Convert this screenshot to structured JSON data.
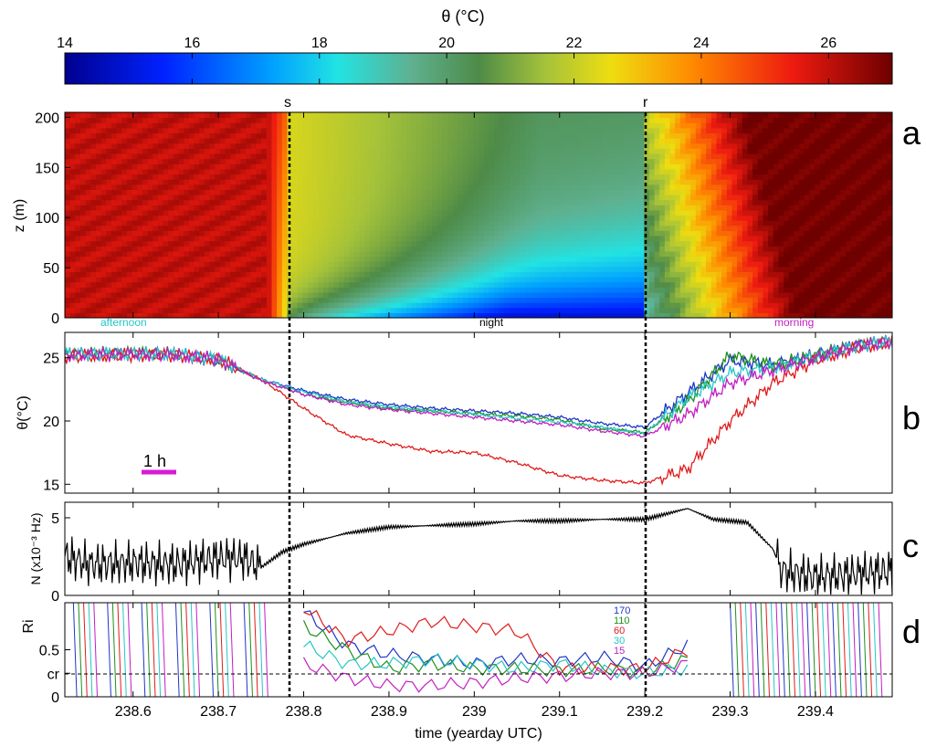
{
  "colorbar": {
    "title": "θ (°C)",
    "ticks": [
      "14",
      "16",
      "18",
      "20",
      "22",
      "24",
      "26"
    ],
    "min": 14,
    "max": 27
  },
  "panel_a": {
    "letter": "a",
    "ylabel": "z (m)",
    "yticks": [
      "0",
      "50",
      "100",
      "150",
      "200"
    ],
    "marker_s": "s",
    "marker_r": "r",
    "label_afternoon": "afternoon",
    "label_night": "night",
    "label_morning": "morning"
  },
  "panel_b": {
    "letter": "b",
    "ylabel": "θ(°C)",
    "yticks": [
      "15",
      "20",
      "25"
    ],
    "scalebar_label": "1 h"
  },
  "panel_c": {
    "letter": "c",
    "ylabel": "N (x10⁻³ Hz)",
    "yticks": [
      "0",
      "5"
    ]
  },
  "panel_d": {
    "letter": "d",
    "ylabel": "Ri",
    "yticks": [
      "0",
      "cr",
      "0.5"
    ],
    "legend": [
      "170",
      "110",
      "60",
      "30",
      "15"
    ]
  },
  "xaxis": {
    "label": "time (yearday UTC)",
    "ticks": [
      "238.6",
      "238.7",
      "238.8",
      "238.9",
      "239",
      "239.1",
      "239.2",
      "239.3",
      "239.4"
    ]
  },
  "colors": {
    "s170": "#1f35c8",
    "s110": "#1e8f1e",
    "s60": "#e01b1b",
    "s30": "#27c6c6",
    "s15": "#c21ec2",
    "scalebar": "#d81ad8"
  },
  "chart_data": [
    {
      "type": "heatmap",
      "title": "θ (°C)",
      "ylabel": "z (m)",
      "xlabel": "time (yearday UTC)",
      "xlim": [
        238.52,
        239.49
      ],
      "ylim": [
        0,
        205
      ],
      "colorbar_range": [
        14,
        27
      ],
      "events": {
        "s": 238.775,
        "r": 239.195
      },
      "notes": "temperature warm (~26) in afternoon and morning, cold (~15) near surface at night"
    },
    {
      "type": "line",
      "ylabel": "θ(°C)",
      "xlabel": "time (yearday UTC)",
      "ylim": [
        14.3,
        27
      ],
      "x": [
        238.52,
        238.6,
        238.65,
        238.7,
        238.75,
        238.8,
        238.85,
        238.9,
        238.95,
        239.0,
        239.05,
        239.1,
        239.15,
        239.2,
        239.25,
        239.3,
        239.35,
        239.4,
        239.45,
        239.49
      ],
      "series": [
        {
          "name": "170",
          "values": [
            25.3,
            25.3,
            25.3,
            24.8,
            23.3,
            22.4,
            21.7,
            21.3,
            21.0,
            20.8,
            20.6,
            20.3,
            19.8,
            19.5,
            22.2,
            24.8,
            24.4,
            25.2,
            26.0,
            26.3
          ]
        },
        {
          "name": "110",
          "values": [
            25.3,
            25.4,
            25.3,
            24.8,
            23.2,
            22.1,
            21.5,
            21.0,
            20.8,
            20.6,
            20.4,
            20.1,
            19.4,
            19.1,
            21.5,
            25.2,
            24.4,
            25.2,
            26.0,
            26.3
          ]
        },
        {
          "name": "60",
          "values": [
            25.1,
            25.2,
            25.2,
            24.9,
            23.3,
            21.0,
            18.9,
            18.2,
            17.6,
            17.5,
            16.7,
            15.7,
            15.3,
            15.1,
            16.2,
            20.0,
            23.0,
            24.8,
            25.8,
            26.2
          ]
        },
        {
          "name": "30",
          "values": [
            25.3,
            25.3,
            25.3,
            24.9,
            23.3,
            22.3,
            21.5,
            21.1,
            20.8,
            20.5,
            20.2,
            19.9,
            19.5,
            19.0,
            21.8,
            23.8,
            24.2,
            25.1,
            25.9,
            26.3
          ]
        },
        {
          "name": "15",
          "values": [
            25.2,
            25.3,
            25.2,
            24.9,
            23.2,
            22.1,
            21.3,
            20.9,
            20.6,
            20.3,
            20.0,
            19.7,
            19.2,
            18.8,
            20.5,
            23.0,
            24.0,
            25.0,
            25.9,
            26.3
          ]
        }
      ]
    },
    {
      "type": "line",
      "ylabel": "N (x10⁻³ Hz)",
      "xlabel": "time (yearday UTC)",
      "ylim": [
        0,
        6
      ],
      "x": [
        238.52,
        238.55,
        238.6,
        238.65,
        238.7,
        238.73,
        238.75,
        238.775,
        238.8,
        238.85,
        238.9,
        238.95,
        239.0,
        239.05,
        239.1,
        239.15,
        239.2,
        239.25,
        239.28,
        239.32,
        239.35,
        239.36,
        239.4,
        239.45,
        239.49
      ],
      "series": [
        {
          "name": "N",
          "values": [
            2.5,
            2.0,
            2.1,
            2.0,
            2.4,
            2.4,
            1.8,
            2.8,
            3.3,
            4.0,
            4.4,
            4.5,
            4.6,
            4.8,
            4.8,
            4.9,
            4.9,
            5.6,
            4.9,
            4.7,
            3.0,
            1.6,
            1.2,
            1.4,
            1.6
          ]
        }
      ]
    },
    {
      "type": "line",
      "ylabel": "Ri",
      "xlabel": "time (yearday UTC)",
      "ylim": [
        0,
        1
      ],
      "critical_value_label": "cr",
      "critical_value": 0.25,
      "x": [
        238.8,
        238.85,
        238.9,
        238.95,
        239.0,
        239.05,
        239.1,
        239.15,
        239.2,
        239.25
      ],
      "series": [
        {
          "name": "170",
          "values": [
            0.9,
            0.55,
            0.45,
            0.4,
            0.35,
            0.4,
            0.38,
            0.42,
            0.32,
            0.55
          ]
        },
        {
          "name": "110",
          "values": [
            0.75,
            0.5,
            0.3,
            0.35,
            0.3,
            0.3,
            0.28,
            0.3,
            0.26,
            0.4
          ]
        },
        {
          "name": "60",
          "values": [
            0.95,
            0.6,
            0.7,
            0.8,
            0.75,
            0.7,
            0.3,
            0.3,
            0.3,
            0.5
          ]
        },
        {
          "name": "30",
          "values": [
            0.55,
            0.35,
            0.35,
            0.4,
            0.35,
            0.3,
            0.35,
            0.28,
            0.25,
            0.3
          ]
        },
        {
          "name": "15",
          "values": [
            0.35,
            0.2,
            0.12,
            0.12,
            0.15,
            0.2,
            0.22,
            0.25,
            0.25,
            0.35
          ]
        }
      ]
    }
  ]
}
